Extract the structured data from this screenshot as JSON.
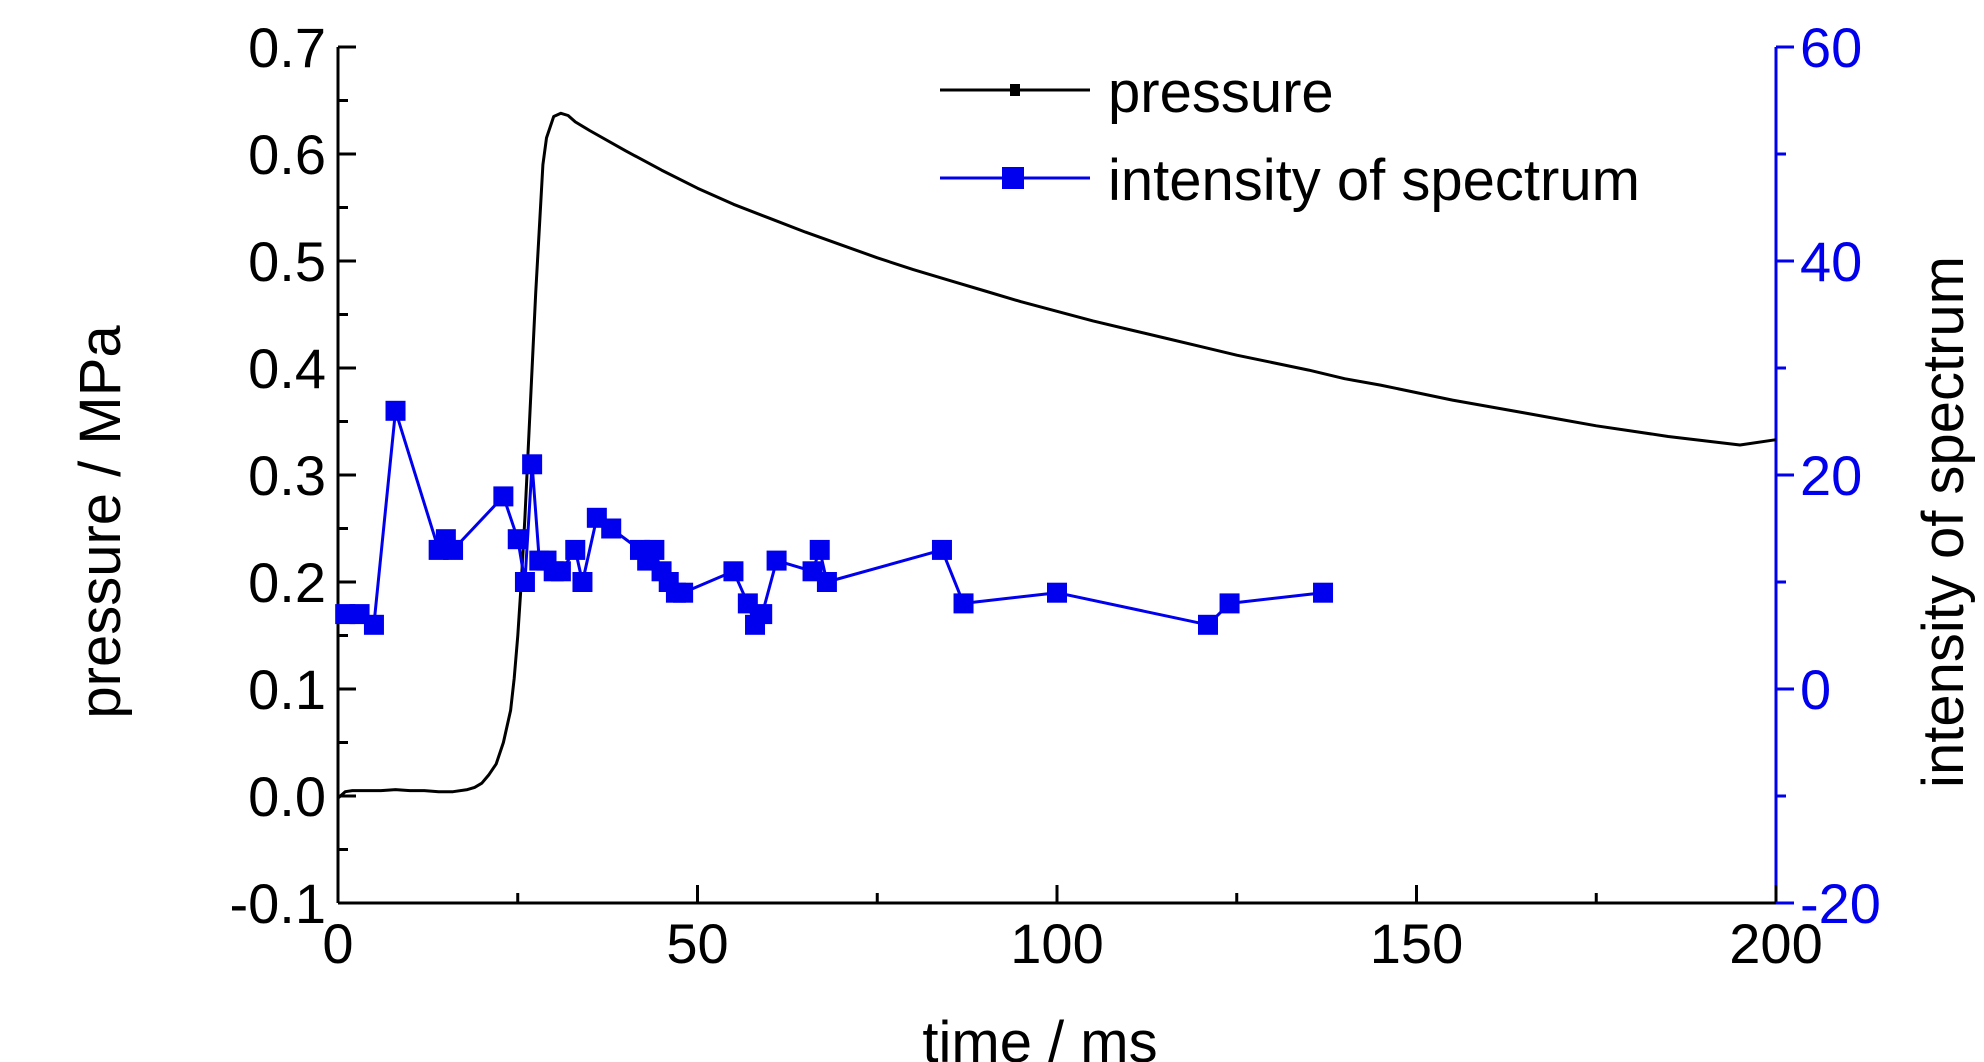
{
  "chart_data": {
    "type": "line",
    "title": "",
    "xlabel": "time / ms",
    "ylabel": "pressure / MPa",
    "y2label": "intensity of spectrum",
    "xlim": [
      0,
      200
    ],
    "ylim": [
      -0.1,
      0.7
    ],
    "y2lim": [
      -20,
      60
    ],
    "xticks": [
      "0",
      "50",
      "100",
      "150",
      "200"
    ],
    "yticks": [
      "-0.1",
      "0.0",
      "0.1",
      "0.2",
      "0.3",
      "0.4",
      "0.5",
      "0.6",
      "0.7"
    ],
    "y2ticks": [
      "-20",
      "0",
      "20",
      "40",
      "60"
    ],
    "grid": false,
    "legend_position": "top-center",
    "series": [
      {
        "name": "pressure",
        "axis": "left",
        "color": "#000000",
        "marker": "none",
        "x": [
          0,
          1,
          2,
          4,
          6,
          8,
          10,
          12,
          14,
          16,
          18,
          19,
          20,
          21,
          22,
          23,
          24,
          24.5,
          25,
          25.5,
          26,
          26.5,
          27,
          27.5,
          28,
          28.5,
          29,
          30,
          31,
          32,
          33,
          35,
          40,
          45,
          50,
          55,
          60,
          65,
          70,
          75,
          80,
          85,
          90,
          95,
          100,
          105,
          110,
          115,
          120,
          125,
          130,
          135,
          140,
          145,
          150,
          155,
          160,
          165,
          170,
          175,
          180,
          185,
          190,
          195,
          200
        ],
        "y": [
          -0.002,
          0.004,
          0.005,
          0.005,
          0.005,
          0.006,
          0.005,
          0.005,
          0.004,
          0.004,
          0.006,
          0.008,
          0.012,
          0.02,
          0.03,
          0.05,
          0.08,
          0.11,
          0.15,
          0.2,
          0.26,
          0.33,
          0.4,
          0.47,
          0.53,
          0.59,
          0.615,
          0.635,
          0.638,
          0.636,
          0.63,
          0.622,
          0.603,
          0.585,
          0.568,
          0.553,
          0.54,
          0.527,
          0.515,
          0.503,
          0.492,
          0.482,
          0.472,
          0.462,
          0.453,
          0.444,
          0.436,
          0.428,
          0.42,
          0.412,
          0.405,
          0.398,
          0.39,
          0.384,
          0.377,
          0.37,
          0.364,
          0.358,
          0.352,
          0.346,
          0.341,
          0.336,
          0.332,
          0.328,
          0.333
        ]
      },
      {
        "name": "intensity of spectrum",
        "axis": "right",
        "color": "#0000ee",
        "marker": "square",
        "x": [
          1,
          3,
          5,
          8,
          14,
          15,
          16,
          23,
          25,
          26,
          27,
          28,
          29,
          30,
          31,
          33,
          34,
          36,
          38,
          42,
          43,
          44,
          45,
          46,
          47,
          48,
          55,
          57,
          58,
          59,
          61,
          66,
          67,
          68,
          84,
          87,
          100,
          121,
          124,
          137
        ],
        "y": [
          7,
          7,
          6,
          26,
          13,
          14,
          13,
          18,
          14,
          10,
          21,
          12,
          12,
          11,
          11,
          13,
          10,
          16,
          15,
          13,
          12,
          13,
          11,
          10,
          9,
          9,
          11,
          8,
          6,
          7,
          12,
          11,
          13,
          10,
          13,
          8,
          9,
          6,
          8,
          9
        ]
      }
    ]
  }
}
